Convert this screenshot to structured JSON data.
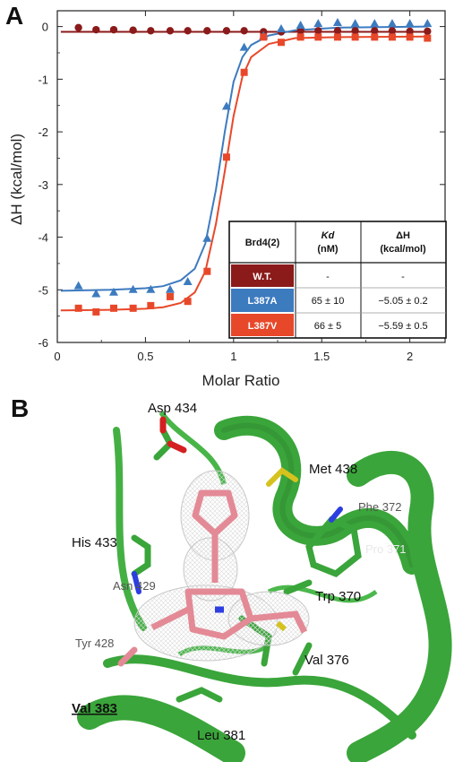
{
  "panels": {
    "a_label": "A",
    "b_label": "B"
  },
  "colors": {
    "wt": "#8b1a1a",
    "l387a": "#3d7bbf",
    "l387v": "#e8482a",
    "protein": "#3aa53a",
    "ligand": "#e38a96"
  },
  "chart_data": {
    "type": "scatter",
    "xlabel": "Molar Ratio",
    "ylabel": "ΔH (kcal/mol)",
    "xlim": [
      0,
      2.2
    ],
    "ylim": [
      -6,
      0.3
    ],
    "xticks": [
      0,
      0.5,
      1,
      1.5,
      2
    ],
    "xtick_labels": [
      "0",
      "0.5",
      "1",
      "1.5",
      "2"
    ],
    "yticks": [
      0,
      -1,
      -2,
      -3,
      -4,
      -5,
      -6
    ],
    "ytick_labels": [
      "0",
      "-1",
      "-2",
      "-3",
      "-4",
      "-5",
      "-6"
    ],
    "grid": false,
    "series": [
      {
        "name": "W.T.",
        "color": "#8b1a1a",
        "marker": "circle",
        "points": [
          [
            0.12,
            -0.02
          ],
          [
            0.22,
            -0.06
          ],
          [
            0.32,
            -0.06
          ],
          [
            0.43,
            -0.07
          ],
          [
            0.53,
            -0.08
          ],
          [
            0.64,
            -0.08
          ],
          [
            0.74,
            -0.08
          ],
          [
            0.85,
            -0.08
          ],
          [
            0.96,
            -0.08
          ],
          [
            1.06,
            -0.08
          ],
          [
            1.17,
            -0.1
          ],
          [
            1.27,
            -0.1
          ],
          [
            1.38,
            -0.08
          ],
          [
            1.48,
            -0.08
          ],
          [
            1.59,
            -0.08
          ],
          [
            1.69,
            -0.08
          ],
          [
            1.8,
            -0.08
          ],
          [
            1.9,
            -0.08
          ],
          [
            2.0,
            -0.09
          ],
          [
            2.1,
            -0.09
          ]
        ],
        "fit": [
          [
            0.02,
            -0.1
          ],
          [
            2.1,
            -0.1
          ]
        ]
      },
      {
        "name": "L387A",
        "color": "#3d7bbf",
        "marker": "triangle",
        "points": [
          [
            0.12,
            -4.93
          ],
          [
            0.22,
            -5.08
          ],
          [
            0.32,
            -5.05
          ],
          [
            0.43,
            -5.0
          ],
          [
            0.53,
            -5.0
          ],
          [
            0.64,
            -5.0
          ],
          [
            0.74,
            -4.85
          ],
          [
            0.85,
            -4.03
          ],
          [
            0.96,
            -1.52
          ],
          [
            1.06,
            -0.4
          ],
          [
            1.17,
            -0.18
          ],
          [
            1.27,
            -0.05
          ],
          [
            1.38,
            0.02
          ],
          [
            1.48,
            0.05
          ],
          [
            1.59,
            0.07
          ],
          [
            1.69,
            0.05
          ],
          [
            1.8,
            0.05
          ],
          [
            1.9,
            0.05
          ],
          [
            2.0,
            0.05
          ],
          [
            2.1,
            0.05
          ]
        ],
        "fit": [
          [
            0.02,
            -5.02
          ],
          [
            0.3,
            -5.0
          ],
          [
            0.5,
            -4.97
          ],
          [
            0.6,
            -4.93
          ],
          [
            0.7,
            -4.82
          ],
          [
            0.78,
            -4.6
          ],
          [
            0.84,
            -4.12
          ],
          [
            0.9,
            -3.1
          ],
          [
            0.95,
            -2.0
          ],
          [
            1.0,
            -1.05
          ],
          [
            1.05,
            -0.58
          ],
          [
            1.1,
            -0.35
          ],
          [
            1.2,
            -0.17
          ],
          [
            1.35,
            -0.07
          ],
          [
            1.6,
            -0.02
          ],
          [
            2.1,
            0.0
          ]
        ]
      },
      {
        "name": "L387V",
        "color": "#e8482a",
        "marker": "square",
        "points": [
          [
            0.12,
            -5.35
          ],
          [
            0.22,
            -5.42
          ],
          [
            0.32,
            -5.35
          ],
          [
            0.43,
            -5.35
          ],
          [
            0.53,
            -5.3
          ],
          [
            0.64,
            -5.13
          ],
          [
            0.74,
            -5.22
          ],
          [
            0.85,
            -4.65
          ],
          [
            0.96,
            -2.48
          ],
          [
            1.06,
            -0.87
          ],
          [
            1.17,
            -0.2
          ],
          [
            1.27,
            -0.3
          ],
          [
            1.38,
            -0.2
          ],
          [
            1.48,
            -0.2
          ],
          [
            1.59,
            -0.2
          ],
          [
            1.69,
            -0.2
          ],
          [
            1.8,
            -0.2
          ],
          [
            1.9,
            -0.2
          ],
          [
            2.0,
            -0.2
          ],
          [
            2.1,
            -0.22
          ]
        ],
        "fit": [
          [
            0.02,
            -5.39
          ],
          [
            0.3,
            -5.38
          ],
          [
            0.5,
            -5.36
          ],
          [
            0.6,
            -5.33
          ],
          [
            0.7,
            -5.25
          ],
          [
            0.78,
            -5.05
          ],
          [
            0.84,
            -4.65
          ],
          [
            0.9,
            -3.75
          ],
          [
            0.95,
            -2.75
          ],
          [
            1.0,
            -1.7
          ],
          [
            1.05,
            -0.95
          ],
          [
            1.1,
            -0.58
          ],
          [
            1.2,
            -0.33
          ],
          [
            1.35,
            -0.22
          ],
          [
            1.6,
            -0.2
          ],
          [
            2.1,
            -0.19
          ]
        ]
      }
    ],
    "table": {
      "headers": [
        "Brd4(2)",
        "Kd",
        "(nM)",
        "ΔH",
        "(kcal/mol)"
      ],
      "rows": [
        {
          "label": "W.T.",
          "color": "#8b1a1a",
          "kd": "-",
          "dh": "-"
        },
        {
          "label": "L387A",
          "color": "#3d7bbf",
          "kd": "65 ± 10",
          "dh": "−5.05 ± 0.2"
        },
        {
          "label": "L387V",
          "color": "#e8482a",
          "kd": "66 ± 5",
          "dh": "−5.59 ± 0.5"
        }
      ]
    }
  },
  "structure": {
    "labels": {
      "asp434": "Asp 434",
      "met438": "Met 438",
      "phe372": "Phe 372",
      "his433": "His 433",
      "pro371": "Pro 371",
      "asn429": "Asn 429",
      "trp370": "Trp 370",
      "tyr428": "Tyr 428",
      "val376": "Val 376",
      "val383": "Val 383",
      "leu381": "Leu 381"
    }
  }
}
